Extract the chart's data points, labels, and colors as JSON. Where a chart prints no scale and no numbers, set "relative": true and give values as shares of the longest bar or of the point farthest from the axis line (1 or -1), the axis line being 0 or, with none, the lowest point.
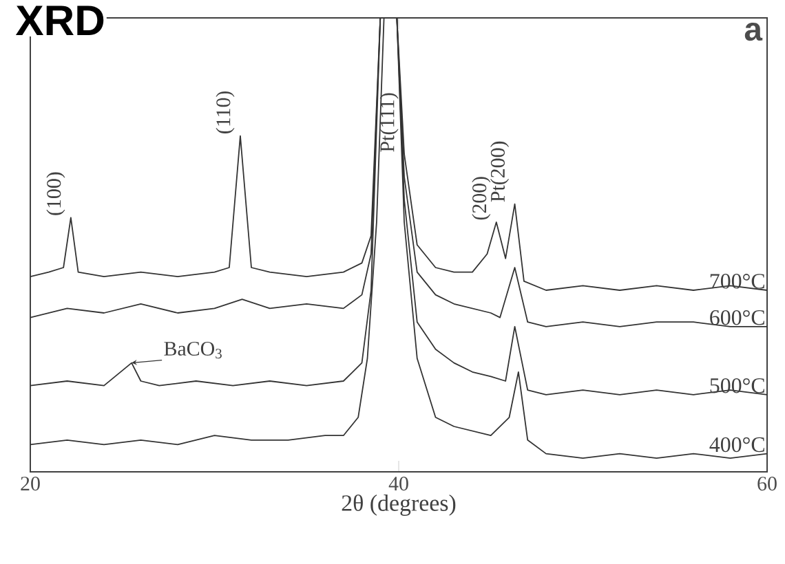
{
  "chart_data": {
    "type": "line",
    "title": "XRD",
    "xlabel": "2θ (degrees)",
    "relative": true,
    "xlim": [
      20,
      60
    ],
    "xticks": [
      20,
      40,
      60
    ],
    "series": [
      {
        "name": "700°C",
        "color": "#333333",
        "x": [
          20,
          21,
          21.8,
          22.2,
          22.6,
          24,
          26,
          28,
          30,
          30.8,
          31.4,
          32,
          33,
          35,
          37,
          38,
          38.5,
          39,
          39.9,
          40.3,
          41,
          42,
          43,
          44,
          44.8,
          45.3,
          45.8,
          46.3,
          46.8,
          48,
          50,
          52,
          54,
          56,
          58,
          60
        ],
        "values": [
          0.43,
          0.44,
          0.45,
          0.56,
          0.44,
          0.43,
          0.44,
          0.43,
          0.44,
          0.45,
          0.74,
          0.45,
          0.44,
          0.43,
          0.44,
          0.46,
          0.52,
          1.0,
          1.0,
          0.7,
          0.5,
          0.45,
          0.44,
          0.44,
          0.48,
          0.55,
          0.47,
          0.59,
          0.42,
          0.4,
          0.41,
          0.4,
          0.41,
          0.4,
          0.41,
          0.4
        ]
      },
      {
        "name": "600°C",
        "color": "#333333",
        "x": [
          20,
          22,
          24,
          26,
          28,
          30,
          31.5,
          33,
          35,
          37,
          38,
          38.5,
          39,
          39.9,
          40.3,
          41,
          42,
          43,
          44,
          45,
          45.5,
          46.3,
          47,
          48,
          50,
          52,
          54,
          56,
          58,
          60
        ],
        "values": [
          0.34,
          0.36,
          0.35,
          0.37,
          0.35,
          0.36,
          0.38,
          0.36,
          0.37,
          0.36,
          0.39,
          0.48,
          1.0,
          1.0,
          0.65,
          0.44,
          0.39,
          0.37,
          0.36,
          0.35,
          0.34,
          0.45,
          0.33,
          0.32,
          0.33,
          0.32,
          0.33,
          0.33,
          0.32,
          0.32
        ]
      },
      {
        "name": "500°C",
        "color": "#333333",
        "x": [
          20,
          22,
          24,
          25.5,
          26,
          27,
          29,
          31,
          33,
          35,
          37,
          38,
          38.5,
          39,
          39.9,
          40.3,
          41,
          42,
          43,
          44,
          45,
          45.8,
          46.3,
          47,
          48,
          50,
          52,
          54,
          56,
          58,
          60
        ],
        "values": [
          0.19,
          0.2,
          0.19,
          0.24,
          0.2,
          0.19,
          0.2,
          0.19,
          0.2,
          0.19,
          0.2,
          0.24,
          0.4,
          1.0,
          1.0,
          0.6,
          0.33,
          0.27,
          0.24,
          0.22,
          0.21,
          0.2,
          0.32,
          0.18,
          0.17,
          0.18,
          0.17,
          0.18,
          0.17,
          0.18,
          0.17
        ]
      },
      {
        "name": "400°C",
        "color": "#333333",
        "x": [
          20,
          22,
          24,
          26,
          28,
          30,
          32,
          34,
          36,
          37,
          37.8,
          38.3,
          38.8,
          39.2,
          39.9,
          40.3,
          41,
          42,
          43,
          44,
          45,
          46,
          46.5,
          47,
          48,
          50,
          52,
          54,
          56,
          58,
          60
        ],
        "values": [
          0.06,
          0.07,
          0.06,
          0.07,
          0.06,
          0.08,
          0.07,
          0.07,
          0.08,
          0.08,
          0.12,
          0.25,
          0.55,
          1.0,
          1.0,
          0.55,
          0.25,
          0.12,
          0.1,
          0.09,
          0.08,
          0.12,
          0.22,
          0.07,
          0.04,
          0.03,
          0.04,
          0.03,
          0.04,
          0.03,
          0.04
        ]
      }
    ],
    "annotations": [
      {
        "text": "(100)",
        "x": 22.2,
        "y": 0.56
      },
      {
        "text": "(110)",
        "x": 31.4,
        "y": 0.74
      },
      {
        "text": "Pt(111)",
        "x": 40.3,
        "y": 0.7
      },
      {
        "text": "(200)",
        "x": 45.3,
        "y": 0.55
      },
      {
        "text": "Pt(200)",
        "x": 46.3,
        "y": 0.59
      },
      {
        "text": "BaCO$_{3}$",
        "x": 25.5,
        "y": 0.24
      },
      "a"
    ]
  }
}
